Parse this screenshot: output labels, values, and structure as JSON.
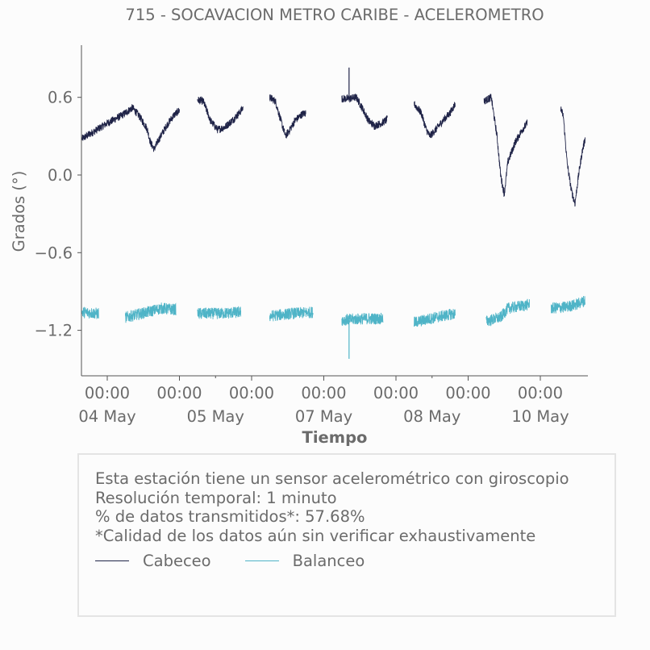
{
  "chart_data": {
    "type": "line",
    "title": "715 - SOCAVACION METRO CARIBE - ACELEROMETRO",
    "xlabel": "Tiempo",
    "ylabel": "Grados (°)",
    "ylim": [
      -1.56,
      1.0
    ],
    "yticks": [
      0.6,
      0.0,
      -0.6,
      -1.2
    ],
    "ytick_labels": [
      "0.6",
      "0.0",
      "−0.6",
      "−1.2"
    ],
    "xlim": [
      -0.35,
      6.62
    ],
    "xticks": [
      0,
      1,
      2,
      3,
      4,
      5,
      6
    ],
    "xtick_labels": [
      [
        "00:00",
        "04 May"
      ],
      [
        "00:00",
        ""
      ],
      [
        "00:00",
        ""
      ],
      [
        "00:00",
        "07 May"
      ],
      [
        "00:00",
        ""
      ],
      [
        "00:00",
        ""
      ],
      [
        "00:00",
        "10 May"
      ]
    ],
    "xtick_date_labels": [
      {
        "x": 0,
        "label": "04 May"
      },
      {
        "x": 1.5,
        "label": "05 May"
      },
      {
        "x": 3,
        "label": "07 May"
      },
      {
        "x": 4.5,
        "label": "08 May"
      },
      {
        "x": 6,
        "label": "10 May"
      }
    ],
    "grid": false,
    "series": [
      {
        "name": "Cabeceo",
        "color": "#1f2347",
        "noise": 0.03,
        "segments": [
          [
            [
              -0.35,
              0.28
            ],
            [
              -0.2,
              0.33
            ],
            [
              0,
              0.4
            ],
            [
              0.2,
              0.46
            ],
            [
              0.3,
              0.5
            ],
            [
              0.35,
              0.52
            ],
            [
              0.45,
              0.45
            ],
            [
              0.55,
              0.36
            ],
            [
              0.6,
              0.25
            ],
            [
              0.65,
              0.2
            ],
            [
              0.72,
              0.28
            ],
            [
              0.82,
              0.38
            ],
            [
              0.92,
              0.46
            ],
            [
              1.0,
              0.5
            ]
          ],
          [
            [
              1.25,
              0.58
            ],
            [
              1.33,
              0.57
            ],
            [
              1.43,
              0.42
            ],
            [
              1.53,
              0.35
            ],
            [
              1.63,
              0.37
            ],
            [
              1.73,
              0.42
            ],
            [
              1.83,
              0.48
            ],
            [
              1.88,
              0.52
            ]
          ],
          [
            [
              2.25,
              0.6
            ],
            [
              2.33,
              0.57
            ],
            [
              2.4,
              0.43
            ],
            [
              2.47,
              0.3
            ],
            [
              2.53,
              0.35
            ],
            [
              2.6,
              0.42
            ],
            [
              2.7,
              0.47
            ],
            [
              2.75,
              0.48
            ]
          ],
          [
            [
              3.25,
              0.59
            ],
            [
              3.35,
              0.59
            ],
            [
              3.45,
              0.6
            ],
            [
              3.55,
              0.5
            ],
            [
              3.62,
              0.42
            ],
            [
              3.7,
              0.38
            ],
            [
              3.8,
              0.4
            ],
            [
              3.88,
              0.43
            ]
          ],
          [
            [
              4.25,
              0.55
            ],
            [
              4.35,
              0.48
            ],
            [
              4.42,
              0.35
            ],
            [
              4.47,
              0.3
            ],
            [
              4.55,
              0.35
            ],
            [
              4.65,
              0.42
            ],
            [
              4.75,
              0.48
            ],
            [
              4.82,
              0.55
            ]
          ],
          [
            [
              5.22,
              0.57
            ],
            [
              5.32,
              0.6
            ],
            [
              5.4,
              0.3
            ],
            [
              5.45,
              0.0
            ],
            [
              5.5,
              -0.15
            ],
            [
              5.55,
              0.1
            ],
            [
              5.65,
              0.25
            ],
            [
              5.75,
              0.35
            ],
            [
              5.82,
              0.4
            ]
          ],
          [
            [
              6.28,
              0.52
            ],
            [
              6.32,
              0.45
            ],
            [
              6.37,
              0.1
            ],
            [
              6.43,
              -0.12
            ],
            [
              6.48,
              -0.22
            ],
            [
              6.53,
              0.0
            ],
            [
              6.58,
              0.18
            ],
            [
              6.62,
              0.28
            ]
          ]
        ]
      },
      {
        "name": "Balanceo",
        "color": "#4fb4c7",
        "noise": 0.045,
        "segments": [
          [
            [
              -0.35,
              -1.06
            ],
            [
              -0.12,
              -1.07
            ]
          ],
          [
            [
              0.25,
              -1.1
            ],
            [
              0.55,
              -1.06
            ],
            [
              0.75,
              -1.03
            ],
            [
              0.95,
              -1.04
            ]
          ],
          [
            [
              1.25,
              -1.07
            ],
            [
              1.55,
              -1.07
            ],
            [
              1.85,
              -1.06
            ]
          ],
          [
            [
              2.25,
              -1.09
            ],
            [
              2.55,
              -1.07
            ],
            [
              2.85,
              -1.06
            ]
          ],
          [
            [
              3.25,
              -1.12
            ],
            [
              3.55,
              -1.11
            ],
            [
              3.82,
              -1.11
            ]
          ],
          [
            [
              4.25,
              -1.14
            ],
            [
              4.55,
              -1.1
            ],
            [
              4.82,
              -1.07
            ]
          ],
          [
            [
              5.25,
              -1.13
            ],
            [
              5.45,
              -1.1
            ],
            [
              5.55,
              -1.03
            ],
            [
              5.85,
              -1.0
            ]
          ],
          [
            [
              6.15,
              -1.03
            ],
            [
              6.35,
              -1.02
            ],
            [
              6.5,
              -1.0
            ],
            [
              6.62,
              -0.97
            ]
          ]
        ]
      }
    ],
    "spikes": [
      {
        "series": "Cabeceo",
        "x": 3.35,
        "from": 0.58,
        "to": 0.83
      },
      {
        "series": "Balanceo",
        "x": 3.35,
        "from": -1.12,
        "to": -1.42
      }
    ]
  },
  "info": {
    "line1": "Esta estación tiene un sensor acelerométrico con giroscopio",
    "line2": "Resolución temporal: 1 minuto",
    "line3": "% de datos transmitidos*: 57.68%",
    "line4": "*Calidad de los datos aún sin verificar exhaustivamente"
  },
  "legend": [
    {
      "label": "Cabeceo",
      "color": "#1f2347"
    },
    {
      "label": "Balanceo",
      "color": "#4fb4c7"
    }
  ]
}
